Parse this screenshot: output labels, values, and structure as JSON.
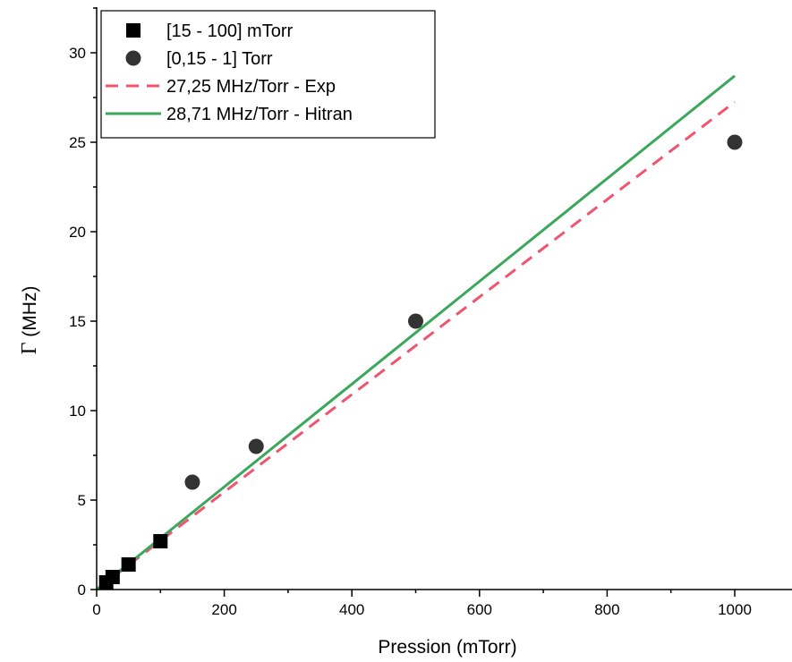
{
  "chart_data": {
    "type": "scatter",
    "xlabel": "Pression (mTorr)",
    "ylabel_symbol": "Γ",
    "ylabel_unit": " (MHz)",
    "xlim": [
      0,
      1090
    ],
    "ylim": [
      0,
      33
    ],
    "x_ticks": [
      0,
      200,
      400,
      600,
      800,
      1000
    ],
    "y_ticks": [
      0,
      5,
      10,
      15,
      20,
      25,
      30
    ],
    "grid": false,
    "legend_position": "top-left",
    "series": [
      {
        "name": "[15 - 100] mTorr",
        "kind": "points",
        "marker": "square",
        "color": "#000000",
        "points": [
          [
            15,
            0.4
          ],
          [
            25,
            0.7
          ],
          [
            50,
            1.4
          ],
          [
            100,
            2.7
          ]
        ]
      },
      {
        "name": "[0,15 - 1] Torr",
        "kind": "points",
        "marker": "circle",
        "color": "#333333",
        "points": [
          [
            150,
            6
          ],
          [
            250,
            8
          ],
          [
            500,
            15
          ],
          [
            1000,
            25
          ]
        ]
      },
      {
        "name": "27,25 MHz/Torr - Exp",
        "kind": "line",
        "dash": true,
        "color": "#f0546e",
        "points": [
          [
            0,
            0
          ],
          [
            1000,
            27.25
          ]
        ]
      },
      {
        "name": "28,71 MHz/Torr - Hitran",
        "kind": "line",
        "dash": false,
        "color": "#3aa85a",
        "points": [
          [
            0,
            0
          ],
          [
            1000,
            28.71
          ]
        ]
      }
    ]
  }
}
